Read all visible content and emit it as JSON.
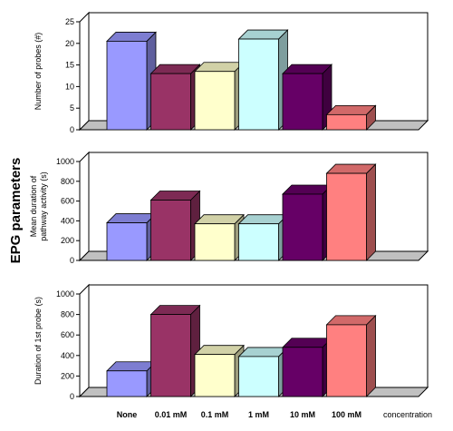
{
  "figure_label": "EPG parameters",
  "x_axis": {
    "categories": [
      "None",
      "0.01 mM",
      "0.1 mM",
      "1 mM",
      "10 mM",
      "100 mM"
    ],
    "unit_label": "concentration"
  },
  "colors": [
    "#9999ff",
    "#993366",
    "#ffffcc",
    "#ccffff",
    "#660066",
    "#ff8080"
  ],
  "chart_data": [
    {
      "type": "bar",
      "categories": [
        "None",
        "0.01 mM",
        "0.1 mM",
        "1 mM",
        "10 mM",
        "100 mM"
      ],
      "values": [
        20.5,
        13,
        13.5,
        21,
        13,
        3.5
      ],
      "title": "",
      "xlabel": "",
      "ylabel": "Number of probes (#)",
      "ylim": [
        0,
        25
      ],
      "yticks": [
        0,
        5,
        10,
        15,
        20,
        25
      ],
      "grid": false,
      "style": "3d"
    },
    {
      "type": "bar",
      "categories": [
        "None",
        "0.01 mM",
        "0.1 mM",
        "1 mM",
        "10 mM",
        "100 mM"
      ],
      "values": [
        380,
        610,
        370,
        370,
        670,
        880
      ],
      "title": "",
      "xlabel": "",
      "ylabel": "Mean duration of pathway activity (s)",
      "ylim": [
        0,
        1000
      ],
      "yticks": [
        0,
        200,
        400,
        600,
        800,
        1000
      ],
      "grid": false,
      "style": "3d"
    },
    {
      "type": "bar",
      "categories": [
        "None",
        "0.01 mM",
        "0.1 mM",
        "1 mM",
        "10 mM",
        "100 mM"
      ],
      "values": [
        250,
        800,
        410,
        390,
        480,
        700
      ],
      "title": "",
      "xlabel": "concentration",
      "ylabel": "Duration of 1st probe (s)",
      "ylim": [
        0,
        1000
      ],
      "yticks": [
        0,
        200,
        400,
        600,
        800,
        1000
      ],
      "grid": false,
      "style": "3d"
    }
  ]
}
